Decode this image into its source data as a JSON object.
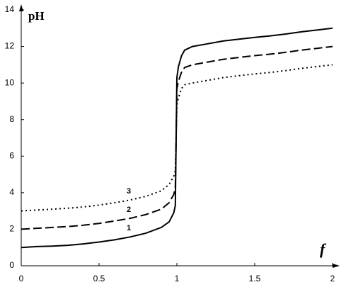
{
  "chart_data": {
    "type": "line",
    "x_label": "f",
    "y_label": "pH",
    "x": [
      0,
      0.1,
      0.2,
      0.3,
      0.4,
      0.5,
      0.6,
      0.7,
      0.8,
      0.9,
      0.95,
      0.98,
      0.99,
      1.0,
      1.01,
      1.03,
      1.05,
      1.1,
      1.2,
      1.3,
      1.4,
      1.5,
      1.6,
      1.7,
      1.8,
      1.9,
      2.0
    ],
    "series": [
      {
        "name": "1",
        "color": "#000000",
        "style": "solid",
        "values": [
          1.0,
          1.05,
          1.08,
          1.12,
          1.2,
          1.3,
          1.42,
          1.58,
          1.78,
          2.1,
          2.4,
          2.9,
          3.3,
          10.3,
          10.9,
          11.5,
          11.8,
          12.0,
          12.15,
          12.3,
          12.4,
          12.5,
          12.58,
          12.68,
          12.8,
          12.9,
          13.0
        ]
      },
      {
        "name": "2",
        "color": "#000000",
        "style": "dashed",
        "values": [
          2.0,
          2.05,
          2.1,
          2.15,
          2.22,
          2.32,
          2.45,
          2.6,
          2.8,
          3.1,
          3.45,
          3.9,
          4.3,
          9.7,
          10.1,
          10.6,
          10.85,
          11.0,
          11.15,
          11.3,
          11.4,
          11.5,
          11.58,
          11.68,
          11.8,
          11.9,
          12.0
        ]
      },
      {
        "name": "3",
        "color": "#000000",
        "style": "dotted",
        "values": [
          3.0,
          3.05,
          3.1,
          3.15,
          3.22,
          3.32,
          3.45,
          3.6,
          3.8,
          4.1,
          4.45,
          4.9,
          5.2,
          8.8,
          9.2,
          9.7,
          9.9,
          10.0,
          10.15,
          10.3,
          10.4,
          10.5,
          10.58,
          10.68,
          10.8,
          10.9,
          11.0
        ]
      }
    ],
    "xlim": [
      0,
      2
    ],
    "ylim": [
      0,
      14
    ],
    "xticks": [
      0,
      0.5,
      1,
      1.5,
      2
    ],
    "yticks": [
      0,
      2,
      4,
      6,
      8,
      10,
      12,
      14
    ]
  }
}
